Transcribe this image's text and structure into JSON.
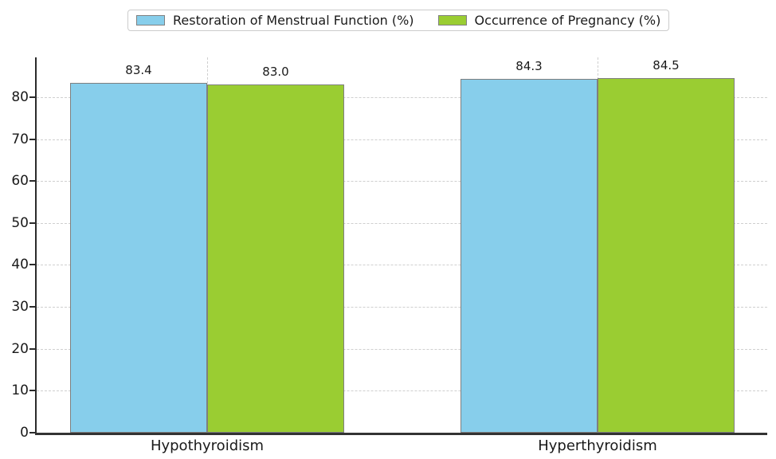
{
  "chart_data": {
    "type": "bar",
    "title": "",
    "xlabel": "",
    "ylabel": "",
    "categories": [
      "Hypothyroidism",
      "Hyperthyroidism"
    ],
    "series": [
      {
        "name": "Restoration of Menstrual Function (%)",
        "color": "#87CEEB",
        "values": [
          83.4,
          84.3
        ],
        "value_labels": [
          "83.4",
          "84.3"
        ]
      },
      {
        "name": "Occurrence of Pregnancy (%)",
        "color": "#9ACD32",
        "values": [
          83.0,
          84.5
        ],
        "value_labels": [
          "83.0",
          "84.5"
        ]
      }
    ],
    "ylim": [
      0,
      89.5
    ],
    "yticks": [
      0,
      10,
      20,
      30,
      40,
      50,
      60,
      70,
      80
    ],
    "grid": "on",
    "grid_style": "dashed",
    "grid_color": "#cfcfcf",
    "bar_edge_color": "#7f7f7f",
    "axis_color": "#2b2b2b",
    "text_color": "#1a1a1a",
    "legend_position": "top-center"
  }
}
